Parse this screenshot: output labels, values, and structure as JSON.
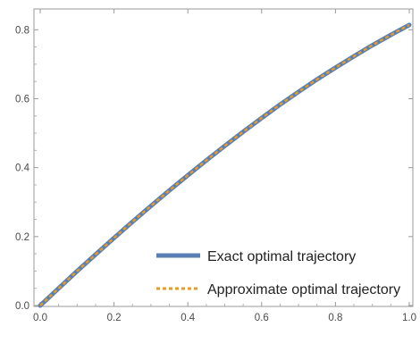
{
  "chart_data": {
    "type": "line",
    "title": "",
    "xlabel": "",
    "ylabel": "",
    "xlim": [
      0.0,
      1.0
    ],
    "ylim": [
      0.0,
      0.85
    ],
    "x_ticks": [
      "0.0",
      "0.2",
      "0.4",
      "0.6",
      "0.8",
      "1.0"
    ],
    "y_ticks": [
      "0.0",
      "0.2",
      "0.4",
      "0.6",
      "0.8"
    ],
    "grid": false,
    "legend_position": "bottom-right",
    "series": [
      {
        "name": "Exact optimal trajectory",
        "color": "#5a7fb5",
        "style": "solid",
        "x": [
          0.0,
          0.05,
          0.1,
          0.15,
          0.2,
          0.25,
          0.3,
          0.35,
          0.4,
          0.45,
          0.5,
          0.55,
          0.6,
          0.65,
          0.7,
          0.75,
          0.8,
          0.85,
          0.9,
          0.95,
          1.0
        ],
        "y": [
          0.0,
          0.05,
          0.1,
          0.148,
          0.196,
          0.243,
          0.289,
          0.334,
          0.378,
          0.421,
          0.463,
          0.504,
          0.544,
          0.583,
          0.62,
          0.656,
          0.69,
          0.723,
          0.755,
          0.785,
          0.814
        ]
      },
      {
        "name": "Approximate optimal trajectory",
        "color": "#e89c22",
        "style": "dashed",
        "x": [
          0.0,
          0.05,
          0.1,
          0.15,
          0.2,
          0.25,
          0.3,
          0.35,
          0.4,
          0.45,
          0.5,
          0.55,
          0.6,
          0.65,
          0.7,
          0.75,
          0.8,
          0.85,
          0.9,
          0.95,
          1.0
        ],
        "y": [
          0.0,
          0.05,
          0.1,
          0.148,
          0.196,
          0.243,
          0.289,
          0.334,
          0.378,
          0.421,
          0.463,
          0.504,
          0.544,
          0.583,
          0.62,
          0.656,
          0.69,
          0.723,
          0.755,
          0.785,
          0.814
        ]
      }
    ]
  }
}
